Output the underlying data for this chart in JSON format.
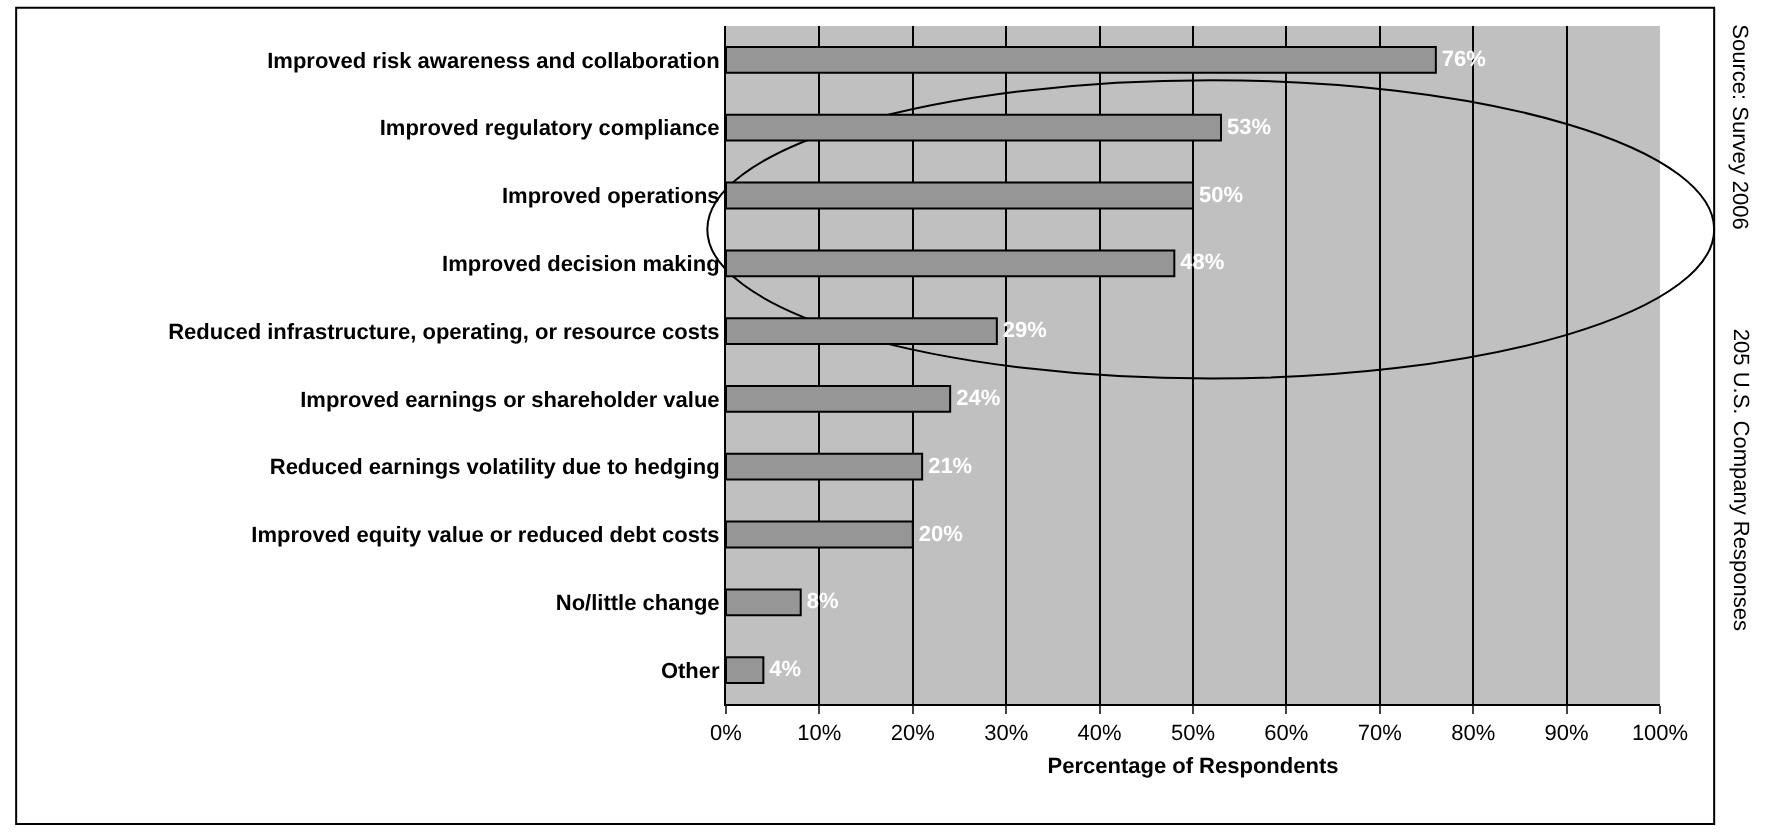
{
  "chart_data": {
    "type": "bar",
    "orientation": "horizontal",
    "categories": [
      "Improved risk awareness and collaboration",
      "Improved regulatory compliance",
      "Improved operations",
      "Improved decision making",
      "Reduced infrastructure, operating, or resource costs",
      "Improved earnings or shareholder value",
      "Reduced earnings volatility due to hedging",
      "Improved equity value or reduced debt costs",
      "No/little change",
      "Other"
    ],
    "values": [
      76,
      53,
      50,
      48,
      29,
      24,
      21,
      20,
      8,
      4
    ],
    "value_labels": [
      "76%",
      "53%",
      "50%",
      "48%",
      "29%",
      "24%",
      "21%",
      "20%",
      "8%",
      "4%"
    ],
    "color": "#969696",
    "xlabel": "Percentage of Respondents",
    "xlim": [
      0,
      100
    ],
    "xticks": [
      {
        "value": 0,
        "label": "0%"
      },
      {
        "value": 10,
        "label": "10%"
      },
      {
        "value": 20,
        "label": "20%"
      },
      {
        "value": 30,
        "label": "30%"
      },
      {
        "value": 40,
        "label": "40%"
      },
      {
        "value": 50,
        "label": "50%"
      },
      {
        "value": 60,
        "label": "60%"
      },
      {
        "value": 70,
        "label": "70%"
      },
      {
        "value": 80,
        "label": "80%"
      },
      {
        "value": 90,
        "label": "90%"
      },
      {
        "value": 100,
        "label": "100%"
      }
    ],
    "grid": "x",
    "annotations": [
      "Source: Survey 2006",
      "205 U.S. Company Responses"
    ]
  }
}
